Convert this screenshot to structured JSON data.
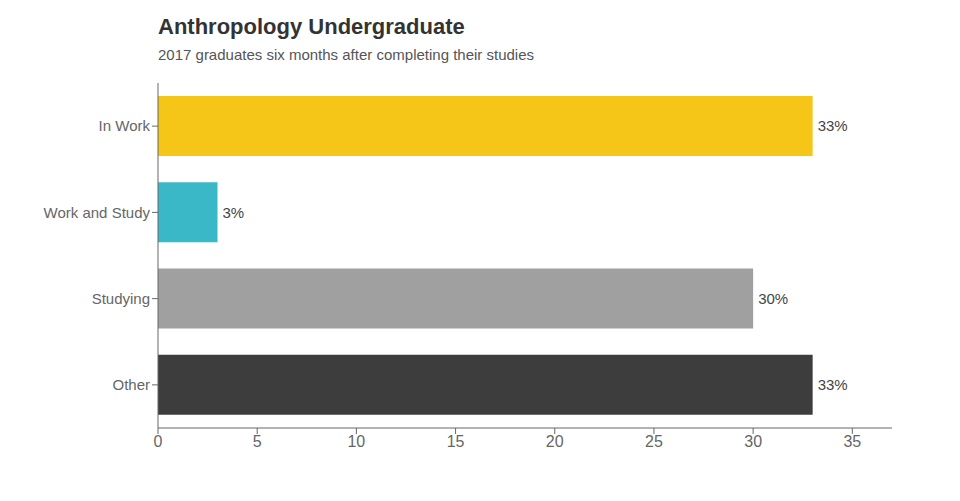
{
  "chart_data": {
    "type": "bar",
    "orientation": "horizontal",
    "title": "Anthropology Undergraduate",
    "subtitle": "2017 graduates six months after completing their studies",
    "categories": [
      "In Work",
      "Work and Study",
      "Studying",
      "Other"
    ],
    "values": [
      33,
      3,
      30,
      33
    ],
    "value_labels": [
      "33%",
      "3%",
      "30%",
      "33%"
    ],
    "data_labels": true,
    "colors": [
      "#f5c518",
      "#3ab8c8",
      "#a0a0a0",
      "#3d3d3d"
    ],
    "xlim": [
      0,
      37
    ],
    "xticks": [
      0,
      5,
      10,
      15,
      20,
      25,
      30,
      35
    ],
    "grid": false
  }
}
